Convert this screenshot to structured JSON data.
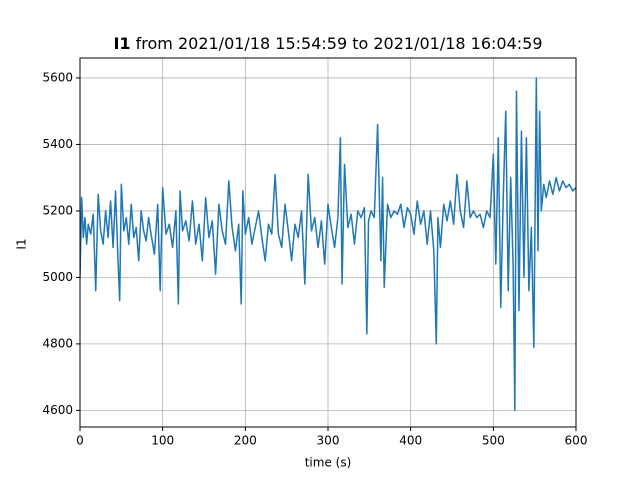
{
  "chart_data": {
    "type": "line",
    "title": [
      "I1",
      "from 2021/01/18 15:54:59 to 2021/01/18 16:04:59"
    ],
    "xlabel": "time (s)",
    "ylabel": "I1",
    "xlim": [
      0,
      600
    ],
    "xticks": [
      0,
      100,
      200,
      300,
      400,
      500,
      600
    ],
    "ylim": [
      4550,
      5660
    ],
    "yticks": [
      4600,
      4800,
      5000,
      5200,
      5400,
      5600
    ],
    "grid": true,
    "series": [
      {
        "name": "I1",
        "color": "#1f77b4",
        "x": [
          0,
          2,
          4,
          6,
          8,
          10,
          13,
          16,
          19,
          22,
          25,
          28,
          31,
          34,
          37,
          40,
          43,
          46,
          48,
          50,
          53,
          56,
          59,
          62,
          65,
          68,
          71,
          74,
          77,
          80,
          83,
          86,
          90,
          94,
          97,
          100,
          104,
          108,
          112,
          116,
          119,
          121,
          124,
          128,
          132,
          136,
          140,
          144,
          148,
          152,
          156,
          160,
          164,
          168,
          172,
          176,
          180,
          184,
          188,
          192,
          195,
          197,
          200,
          204,
          208,
          212,
          216,
          220,
          224,
          228,
          232,
          236,
          240,
          244,
          248,
          252,
          256,
          260,
          264,
          268,
          272,
          276,
          280,
          284,
          288,
          292,
          296,
          300,
          304,
          308,
          312,
          315,
          317,
          320,
          324,
          328,
          332,
          336,
          340,
          344,
          347,
          349,
          352,
          356,
          360,
          364,
          366,
          368,
          372,
          376,
          380,
          384,
          388,
          392,
          396,
          400,
          404,
          408,
          412,
          416,
          420,
          424,
          428,
          431,
          433,
          436,
          440,
          444,
          448,
          452,
          456,
          460,
          464,
          468,
          472,
          476,
          480,
          484,
          488,
          492,
          496,
          500,
          503,
          506,
          509,
          512,
          515,
          518,
          521,
          524,
          526,
          528,
          531,
          534,
          537,
          540,
          543,
          546,
          549,
          552,
          554,
          556,
          558,
          561,
          564,
          568,
          572,
          576,
          580,
          584,
          588,
          592,
          596,
          600
        ],
        "values": [
          5000,
          5240,
          5120,
          5180,
          5100,
          5160,
          5130,
          5190,
          4960,
          5250,
          5140,
          5100,
          5200,
          5120,
          5230,
          5090,
          5260,
          5050,
          4930,
          5280,
          5140,
          5180,
          5100,
          5220,
          5120,
          5150,
          5050,
          5200,
          5140,
          5110,
          5180,
          5130,
          5070,
          5220,
          4960,
          5270,
          5130,
          5160,
          5090,
          5200,
          4920,
          5260,
          5140,
          5170,
          5110,
          5230,
          5100,
          5160,
          5050,
          5240,
          5120,
          5170,
          5010,
          5220,
          5140,
          5100,
          5290,
          5150,
          5080,
          5160,
          4920,
          5260,
          5130,
          5180,
          5100,
          5150,
          5200,
          5120,
          5050,
          5160,
          5130,
          5310,
          5130,
          5090,
          5220,
          5140,
          5050,
          5160,
          5120,
          5200,
          4980,
          5310,
          5140,
          5180,
          5090,
          5170,
          5040,
          5220,
          5150,
          5090,
          5180,
          5420,
          4980,
          5340,
          5150,
          5190,
          5100,
          5200,
          5180,
          5210,
          4830,
          5170,
          5200,
          5180,
          5460,
          5050,
          5300,
          4970,
          5220,
          5180,
          5200,
          5190,
          5220,
          5150,
          5210,
          5190,
          5130,
          5230,
          5160,
          5200,
          5100,
          5200,
          5080,
          4800,
          5180,
          5090,
          5220,
          5170,
          5230,
          5160,
          5310,
          5200,
          5150,
          5290,
          5180,
          5200,
          5180,
          5190,
          5150,
          5200,
          5180,
          5370,
          5040,
          5420,
          4910,
          5240,
          5500,
          4960,
          5300,
          5030,
          4600,
          5560,
          4900,
          5440,
          5000,
          5420,
          4960,
          5150,
          4790,
          5600,
          5080,
          5500,
          5200,
          5280,
          5240,
          5290,
          5250,
          5300,
          5260,
          5290,
          5270,
          5280,
          5260,
          5270
        ]
      }
    ]
  }
}
